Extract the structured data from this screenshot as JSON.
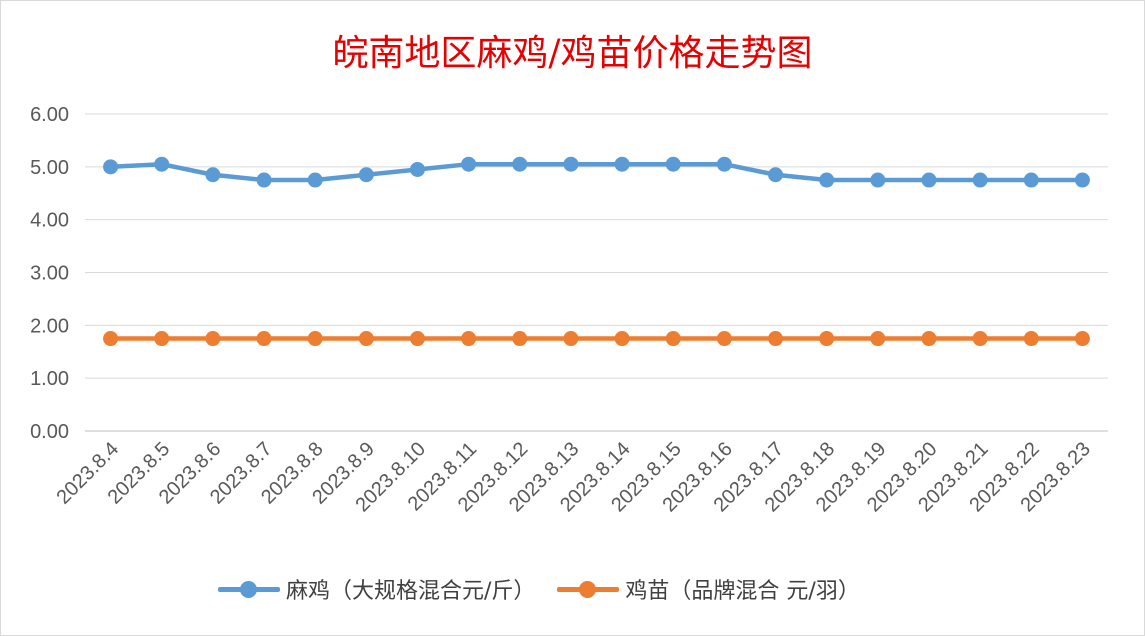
{
  "chart_data": {
    "type": "line",
    "title": "皖南地区麻鸡/鸡苗价格走势图",
    "categories": [
      "2023.8.4",
      "2023.8.5",
      "2023.8.6",
      "2023.8.7",
      "2023.8.8",
      "2023.8.9",
      "2023.8.10",
      "2023.8.11",
      "2023.8.12",
      "2023.8.13",
      "2023.8.14",
      "2023.8.15",
      "2023.8.16",
      "2023.8.17",
      "2023.8.18",
      "2023.8.19",
      "2023.8.20",
      "2023.8.21",
      "2023.8.22",
      "2023.8.23"
    ],
    "series": [
      {
        "name": "麻鸡（大规格混合元/斤）",
        "color": "#5b9bd5",
        "values": [
          5.0,
          5.05,
          4.85,
          4.75,
          4.75,
          4.85,
          4.95,
          5.05,
          5.05,
          5.05,
          5.05,
          5.05,
          5.05,
          4.85,
          4.75,
          4.75,
          4.75,
          4.75,
          4.75,
          4.75
        ]
      },
      {
        "name": "鸡苗（品牌混合 元/羽）",
        "color": "#ed7d31",
        "values": [
          1.75,
          1.75,
          1.75,
          1.75,
          1.75,
          1.75,
          1.75,
          1.75,
          1.75,
          1.75,
          1.75,
          1.75,
          1.75,
          1.75,
          1.75,
          1.75,
          1.75,
          1.75,
          1.75,
          1.75
        ]
      }
    ],
    "yticks": [
      "0.00",
      "1.00",
      "2.00",
      "3.00",
      "4.00",
      "5.00",
      "6.00"
    ],
    "ylim": [
      0,
      6
    ],
    "grid": true,
    "legend_position": "bottom"
  }
}
